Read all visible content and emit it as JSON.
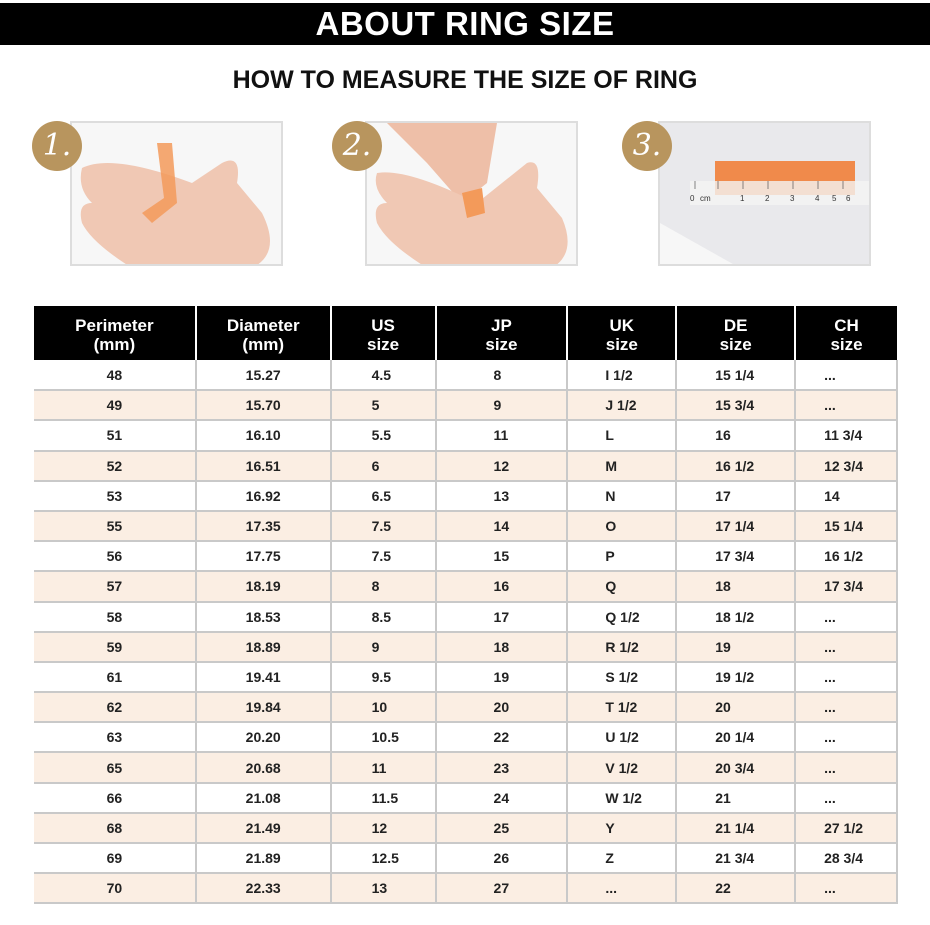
{
  "title": "ABOUT RING SIZE",
  "subtitle": "HOW TO MEASURE THE SIZE OF RING",
  "steps": [
    {
      "label": "1."
    },
    {
      "label": "2."
    },
    {
      "label": "3."
    }
  ],
  "ruler_labels": [
    "0",
    "cm",
    "1",
    "2",
    "3",
    "4",
    "5",
    "6"
  ],
  "colors": {
    "badge": "#b8955e",
    "stripe": "#fbeee3",
    "header": "#000000",
    "tape": "#f08a4b"
  },
  "table": {
    "headers": [
      [
        "Perimeter",
        "(mm)"
      ],
      [
        "Diameter",
        "(mm)"
      ],
      [
        "US",
        "size"
      ],
      [
        "JP",
        "size"
      ],
      [
        "UK",
        "size"
      ],
      [
        "DE",
        "size"
      ],
      [
        "CH",
        "size"
      ]
    ],
    "rows": [
      [
        "48",
        "15.27",
        "4.5",
        "8",
        "I 1/2",
        "15 1/4",
        "..."
      ],
      [
        "49",
        "15.70",
        "5",
        "9",
        "J 1/2",
        "15 3/4",
        "..."
      ],
      [
        "51",
        "16.10",
        "5.5",
        "11",
        "L",
        "16",
        "11 3/4"
      ],
      [
        "52",
        "16.51",
        "6",
        "12",
        "M",
        "16 1/2",
        "12 3/4"
      ],
      [
        "53",
        "16.92",
        "6.5",
        "13",
        "N",
        "17",
        "14"
      ],
      [
        "55",
        "17.35",
        "7.5",
        "14",
        "O",
        "17 1/4",
        "15 1/4"
      ],
      [
        "56",
        "17.75",
        "7.5",
        "15",
        "P",
        "17 3/4",
        "16 1/2"
      ],
      [
        "57",
        "18.19",
        "8",
        "16",
        "Q",
        "18",
        "17 3/4"
      ],
      [
        "58",
        "18.53",
        "8.5",
        "17",
        "Q 1/2",
        "18 1/2",
        "..."
      ],
      [
        "59",
        "18.89",
        "9",
        "18",
        "R 1/2",
        "19",
        "..."
      ],
      [
        "61",
        "19.41",
        "9.5",
        "19",
        "S 1/2",
        "19 1/2",
        "..."
      ],
      [
        "62",
        "19.84",
        "10",
        "20",
        "T 1/2",
        "20",
        "..."
      ],
      [
        "63",
        "20.20",
        "10.5",
        "22",
        "U 1/2",
        "20 1/4",
        "..."
      ],
      [
        "65",
        "20.68",
        "11",
        "23",
        "V 1/2",
        "20 3/4",
        "..."
      ],
      [
        "66",
        "21.08",
        "11.5",
        "24",
        "W 1/2",
        "21",
        "..."
      ],
      [
        "68",
        "21.49",
        "12",
        "25",
        "Y",
        "21 1/4",
        "27 1/2"
      ],
      [
        "69",
        "21.89",
        "12.5",
        "26",
        "Z",
        "21 3/4",
        "28 3/4"
      ],
      [
        "70",
        "22.33",
        "13",
        "27",
        "...",
        "22",
        "..."
      ]
    ]
  }
}
